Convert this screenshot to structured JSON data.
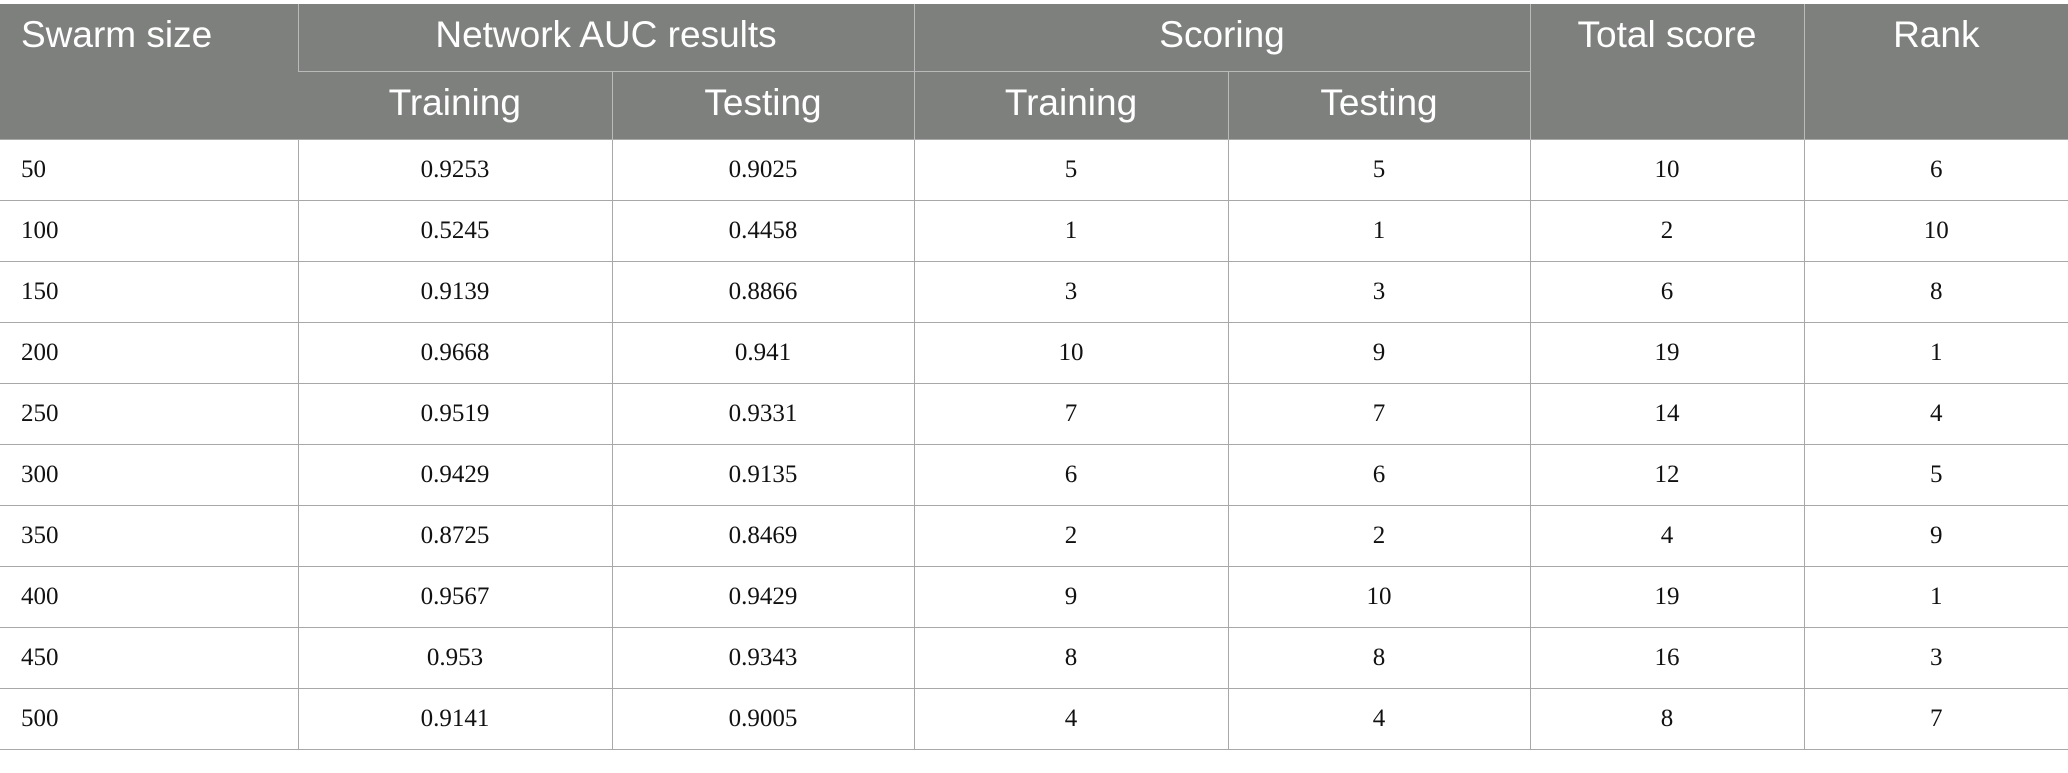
{
  "table": {
    "headers": {
      "swarm_size": "Swarm size",
      "network_auc": "Network AUC results",
      "scoring": "Scoring",
      "total_score": "Total score",
      "rank": "Rank",
      "auc_training": "Training",
      "auc_testing": "Testing",
      "scoring_training": "Training",
      "scoring_testing": "Testing"
    },
    "rows": [
      {
        "swarm_size": "50",
        "auc_training": "0.9253",
        "auc_testing": "0.9025",
        "score_training": "5",
        "score_testing": "5",
        "total": "10",
        "rank": "6"
      },
      {
        "swarm_size": "100",
        "auc_training": "0.5245",
        "auc_testing": "0.4458",
        "score_training": "1",
        "score_testing": "1",
        "total": "2",
        "rank": "10"
      },
      {
        "swarm_size": "150",
        "auc_training": "0.9139",
        "auc_testing": "0.8866",
        "score_training": "3",
        "score_testing": "3",
        "total": "6",
        "rank": "8"
      },
      {
        "swarm_size": "200",
        "auc_training": "0.9668",
        "auc_testing": "0.941",
        "score_training": "10",
        "score_testing": "9",
        "total": "19",
        "rank": "1"
      },
      {
        "swarm_size": "250",
        "auc_training": "0.9519",
        "auc_testing": "0.9331",
        "score_training": "7",
        "score_testing": "7",
        "total": "14",
        "rank": "4"
      },
      {
        "swarm_size": "300",
        "auc_training": "0.9429",
        "auc_testing": "0.9135",
        "score_training": "6",
        "score_testing": "6",
        "total": "12",
        "rank": "5"
      },
      {
        "swarm_size": "350",
        "auc_training": "0.8725",
        "auc_testing": "0.8469",
        "score_training": "2",
        "score_testing": "2",
        "total": "4",
        "rank": "9"
      },
      {
        "swarm_size": "400",
        "auc_training": "0.9567",
        "auc_testing": "0.9429",
        "score_training": "9",
        "score_testing": "10",
        "total": "19",
        "rank": "1"
      },
      {
        "swarm_size": "450",
        "auc_training": "0.953",
        "auc_testing": "0.9343",
        "score_training": "8",
        "score_testing": "8",
        "total": "16",
        "rank": "3"
      },
      {
        "swarm_size": "500",
        "auc_training": "0.9141",
        "auc_testing": "0.9005",
        "score_training": "4",
        "score_testing": "4",
        "total": "8",
        "rank": "7"
      }
    ]
  },
  "colors": {
    "header_background": "#7e807e",
    "header_text": "#ffffff",
    "grid_line": "#a8a8a8"
  }
}
